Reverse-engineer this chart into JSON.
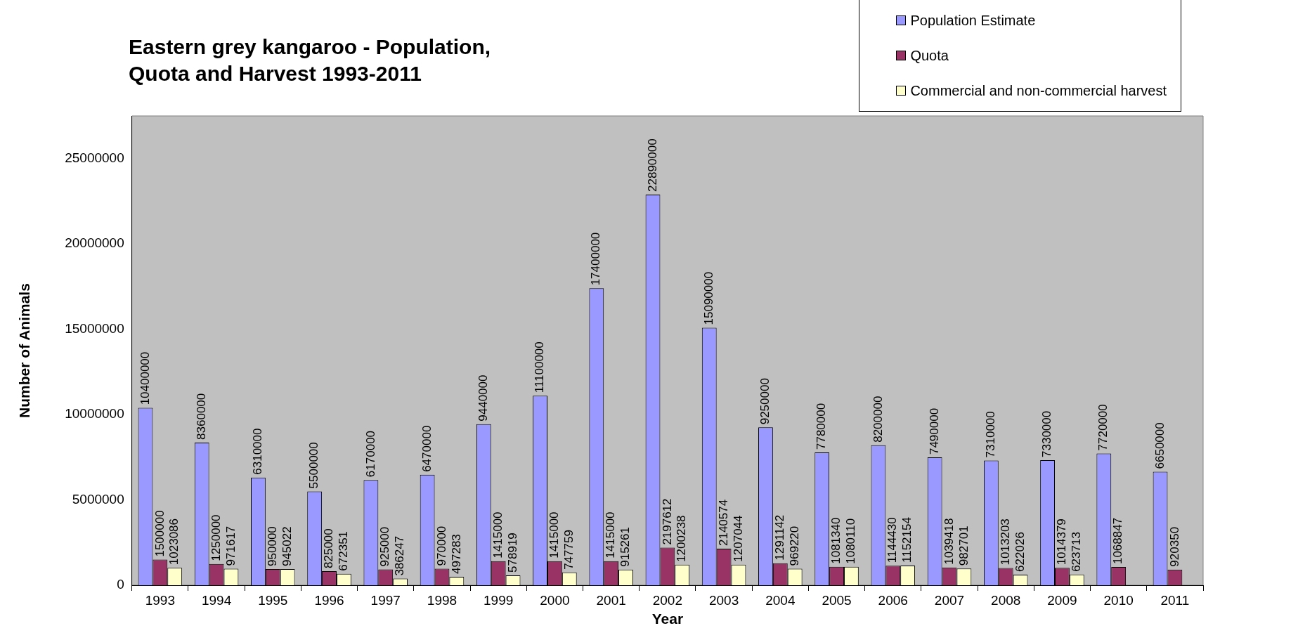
{
  "chart_data": {
    "type": "bar",
    "title": "Eastern grey kangaroo - Population, Quota and Harvest 1993-2011",
    "xlabel": "Year",
    "ylabel": "Number of Animals",
    "categories": [
      "1993",
      "1994",
      "1995",
      "1996",
      "1997",
      "1998",
      "1999",
      "2000",
      "2001",
      "2002",
      "2003",
      "2004",
      "2005",
      "2006",
      "2007",
      "2008",
      "2009",
      "2010",
      "2011"
    ],
    "series": [
      {
        "name": "Population Estimate",
        "color": "#9999ff",
        "values": [
          10400000,
          8360000,
          6310000,
          5500000,
          6170000,
          6470000,
          9440000,
          11100000,
          17400000,
          22890000,
          15090000,
          9250000,
          7780000,
          8200000,
          7490000,
          7310000,
          7330000,
          7720000,
          6650000
        ]
      },
      {
        "name": "Quota",
        "color": "#993366",
        "values": [
          1500000,
          1250000,
          950000,
          825000,
          925000,
          970000,
          1415000,
          1415000,
          1415000,
          2197612,
          2140574,
          1291142,
          1081340,
          1144430,
          1039418,
          1013203,
          1014379,
          1068847,
          920350
        ]
      },
      {
        "name": "Commercial and non-commercial harvest",
        "color": "#ffffcc",
        "values": [
          1023086,
          971617,
          945022,
          672351,
          386247,
          497283,
          578919,
          747759,
          915261,
          1200238,
          1207044,
          969220,
          1080110,
          1152154,
          982701,
          622026,
          623713,
          null,
          null
        ]
      }
    ],
    "ylim": [
      0,
      27500000
    ],
    "yticks": [
      0,
      5000000,
      10000000,
      15000000,
      20000000,
      25000000
    ],
    "grid": false,
    "legend": "top right",
    "data_labels": true
  }
}
